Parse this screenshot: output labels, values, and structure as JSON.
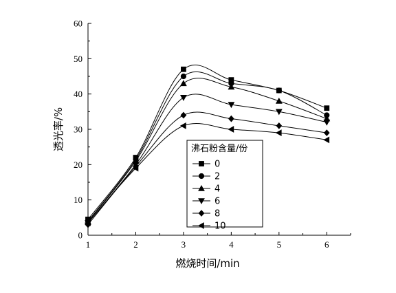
{
  "chart_data": {
    "type": "line",
    "xlabel": "燃烧时间/min",
    "ylabel": "透光率/%",
    "x": [
      1,
      2,
      3,
      4,
      5,
      6
    ],
    "xlim": [
      1,
      6.5
    ],
    "ylim": [
      0,
      60
    ],
    "xticks": [
      "1",
      "2",
      "3",
      "4",
      "5",
      "6"
    ],
    "yticks": [
      "0",
      "10",
      "20",
      "30",
      "40",
      "50",
      "60"
    ],
    "legend": {
      "title": "沸石粉含量/份",
      "placement": "center"
    },
    "grid": false,
    "series": [
      {
        "name": "0",
        "marker": "square",
        "values": [
          4.5,
          22,
          47,
          44,
          41,
          36
        ]
      },
      {
        "name": "2",
        "marker": "circle",
        "values": [
          4,
          21.5,
          45,
          43,
          41,
          34
        ]
      },
      {
        "name": "4",
        "marker": "triangle-up",
        "values": [
          3.8,
          21,
          43,
          42,
          38,
          33
        ]
      },
      {
        "name": "6",
        "marker": "triangle-down",
        "values": [
          3.5,
          20,
          39,
          37,
          35,
          32
        ]
      },
      {
        "name": "8",
        "marker": "diamond",
        "values": [
          3,
          19.5,
          34,
          33,
          31,
          29
        ]
      },
      {
        "name": "10",
        "marker": "triangle-left",
        "values": [
          3.5,
          19,
          31,
          30,
          29,
          27
        ]
      }
    ]
  }
}
